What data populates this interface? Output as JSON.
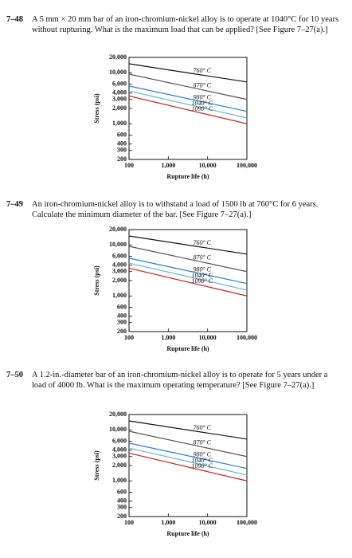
{
  "problems": [
    {
      "number": "7–48",
      "text": "A 5 mm × 20 mm bar of an iron-chromium-nickel alloy is to operate at 1040°C for 10 years without rupturing. What is the maximum load that can be applied? [See Figure 7–27(a).]"
    },
    {
      "number": "7–49",
      "text": "An iron-chromium-nickel alloy is to withstand a load of 1500 lb at 760°C for 6 years. Calculate the minimum diameter of the bar. [See Figure 7–27(a).]"
    },
    {
      "number": "7–50",
      "text": "A 1.2-in.-diameter bar of an iron-chromium-nickel alloy is to operate for 5 years under a load of 4000 lb. What is the maximum operating temperature? [See Figure 7–27(a).]"
    }
  ],
  "chart_data": [
    {
      "type": "line",
      "x_label": "Rupture life (h)",
      "y_label": "Stress (psi)",
      "xscale": "log",
      "yscale": "log",
      "x": [
        100,
        100000
      ],
      "xlim": [
        100,
        100000
      ],
      "xticks": [
        100,
        {
          "value": 1000,
          "label": "1,000"
        },
        {
          "value": 10000,
          "label": "10,000"
        },
        {
          "value": 100000,
          "label": "100,000"
        }
      ],
      "ylim": [
        200,
        20000
      ],
      "yticks": [
        {
          "value": 20000,
          "label": "20,000"
        },
        {
          "value": 10000,
          "label": "10,000"
        },
        {
          "value": 6000,
          "label": "6,000"
        },
        {
          "value": 4000,
          "label": "4,000"
        },
        {
          "value": 3000,
          "label": "3,000"
        },
        {
          "value": 2000,
          "label": "2,000"
        },
        {
          "value": 1000,
          "label": "1,000"
        },
        600,
        400,
        300,
        200
      ],
      "series": [
        {
          "name": "760° C",
          "color": "#111111",
          "values": [
            15000,
            6600
          ]
        },
        {
          "name": "870° C",
          "color": "#555555",
          "values": [
            9400,
            3000
          ]
        },
        {
          "name": "980° C",
          "color": "#2a7fd4",
          "values": [
            5500,
            1750
          ]
        },
        {
          "name": "1040° C",
          "color": "#5fb8e0",
          "values": [
            4400,
            1300
          ]
        },
        {
          "name": "1090° C",
          "color": "#d42020",
          "values": [
            3500,
            1000
          ]
        }
      ]
    },
    {
      "type": "line",
      "x_label": "Rupture life (h)",
      "y_label": "Stress (psi)",
      "xscale": "log",
      "yscale": "log",
      "x": [
        100,
        100000
      ],
      "xlim": [
        100,
        100000
      ],
      "xticks": [
        100,
        {
          "value": 1000,
          "label": "1,000"
        },
        {
          "value": 10000,
          "label": "10,000"
        },
        {
          "value": 100000,
          "label": "100,000"
        }
      ],
      "ylim": [
        200,
        20000
      ],
      "yticks": [
        {
          "value": 20000,
          "label": "20,000"
        },
        {
          "value": 10000,
          "label": "10,000"
        },
        {
          "value": 6000,
          "label": "6,000"
        },
        {
          "value": 4000,
          "label": "4,000"
        },
        {
          "value": 3000,
          "label": "3,000"
        },
        {
          "value": 2000,
          "label": "2,000"
        },
        {
          "value": 1000,
          "label": "1,000"
        },
        600,
        400,
        300,
        200
      ],
      "series": [
        {
          "name": "760° C",
          "color": "#111111",
          "values": [
            15000,
            6600
          ]
        },
        {
          "name": "870° C",
          "color": "#555555",
          "values": [
            9400,
            3000
          ]
        },
        {
          "name": "980° C",
          "color": "#2a7fd4",
          "values": [
            5500,
            1750
          ]
        },
        {
          "name": "1040° C",
          "color": "#5fb8e0",
          "values": [
            4400,
            1300
          ]
        },
        {
          "name": "1090° C",
          "color": "#d42020",
          "values": [
            3500,
            1000
          ]
        }
      ]
    },
    {
      "type": "line",
      "x_label": "Rupture life (h)",
      "y_label": "Stress (psi)",
      "xscale": "log",
      "yscale": "log",
      "x": [
        100,
        100000
      ],
      "xlim": [
        100,
        100000
      ],
      "xticks": [
        100,
        {
          "value": 1000,
          "label": "1,000"
        },
        {
          "value": 10000,
          "label": "10,000"
        },
        {
          "value": 100000,
          "label": "100,000"
        }
      ],
      "ylim": [
        200,
        20000
      ],
      "yticks": [
        {
          "value": 20000,
          "label": "20,000"
        },
        {
          "value": 10000,
          "label": "10,000"
        },
        {
          "value": 6000,
          "label": "6,000"
        },
        {
          "value": 4000,
          "label": "4,000"
        },
        {
          "value": 3000,
          "label": "3,000"
        },
        {
          "value": 2000,
          "label": "2,000"
        },
        {
          "value": 1000,
          "label": "1,000"
        },
        600,
        400,
        300,
        200
      ],
      "series": [
        {
          "name": "760° C",
          "color": "#111111",
          "values": [
            15000,
            6600
          ]
        },
        {
          "name": "870° C",
          "color": "#555555",
          "values": [
            9400,
            3000
          ]
        },
        {
          "name": "980° C",
          "color": "#2a7fd4",
          "values": [
            5500,
            1750
          ]
        },
        {
          "name": "1040° C",
          "color": "#5fb8e0",
          "values": [
            4400,
            1300
          ]
        },
        {
          "name": "1090° C",
          "color": "#d42020",
          "values": [
            3500,
            1000
          ]
        }
      ]
    }
  ]
}
